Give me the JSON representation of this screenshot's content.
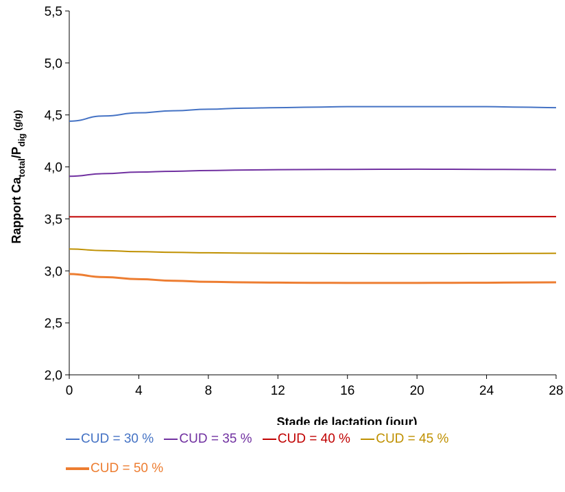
{
  "chart_data": {
    "type": "line",
    "xlabel": "Stade de lactation (jour)",
    "ylabel": {
      "prefix": "Rapport Ca",
      "sub1": "total",
      "mid": "/P",
      "sub2": "dig",
      "suffix": " (g/g)"
    },
    "xlim": [
      0,
      28
    ],
    "ylim": [
      2.0,
      5.5
    ],
    "xticks": [
      "0",
      "4",
      "8",
      "12",
      "16",
      "20",
      "24",
      "28"
    ],
    "xtick_values": [
      0,
      4,
      8,
      12,
      16,
      20,
      24,
      28
    ],
    "yticks": [
      "2,0",
      "2,5",
      "3,0",
      "3,5",
      "4,0",
      "4,5",
      "5,0",
      "5,5"
    ],
    "ytick_values": [
      2.0,
      2.5,
      3.0,
      3.5,
      4.0,
      4.5,
      5.0,
      5.5
    ],
    "grid": false,
    "legend_position": "bottom",
    "x": [
      0,
      2,
      4,
      6,
      8,
      10,
      12,
      14,
      16,
      18,
      20,
      22,
      24,
      26,
      28
    ],
    "series": [
      {
        "name": "CUD = 30 %",
        "color": "#4472C4",
        "values": [
          4.44,
          4.49,
          4.52,
          4.54,
          4.555,
          4.565,
          4.57,
          4.575,
          4.58,
          4.58,
          4.58,
          4.58,
          4.58,
          4.575,
          4.57
        ]
      },
      {
        "name": "CUD = 35 %",
        "color": "#7030A0",
        "values": [
          3.91,
          3.935,
          3.95,
          3.958,
          3.965,
          3.97,
          3.973,
          3.975,
          3.976,
          3.977,
          3.978,
          3.977,
          3.976,
          3.975,
          3.973
        ]
      },
      {
        "name": "CUD = 40 %",
        "color": "#C00000",
        "values": [
          3.52,
          3.52,
          3.52,
          3.521,
          3.521,
          3.521,
          3.522,
          3.522,
          3.522,
          3.522,
          3.522,
          3.522,
          3.522,
          3.522,
          3.522
        ]
      },
      {
        "name": "CUD = 45 %",
        "color": "#BF9000",
        "values": [
          3.21,
          3.195,
          3.185,
          3.178,
          3.174,
          3.171,
          3.169,
          3.168,
          3.167,
          3.166,
          3.166,
          3.166,
          3.167,
          3.168,
          3.169
        ]
      },
      {
        "name": "CUD = 50 %",
        "color": "#ED7D31",
        "values": [
          2.97,
          2.94,
          2.92,
          2.905,
          2.895,
          2.89,
          2.887,
          2.885,
          2.884,
          2.884,
          2.884,
          2.885,
          2.886,
          2.888,
          2.89
        ]
      }
    ]
  },
  "legend": {
    "row1": [
      {
        "label": "CUD = 30 %",
        "color": "#4472C4"
      },
      {
        "label": "CUD = 35 %",
        "color": "#7030A0"
      },
      {
        "label": "CUD = 40 %",
        "color": "#C00000"
      },
      {
        "label": "CUD = 45 %",
        "color": "#BF9000"
      }
    ],
    "row2": [
      {
        "label": "CUD = 50 %",
        "color": "#ED7D31"
      }
    ]
  }
}
